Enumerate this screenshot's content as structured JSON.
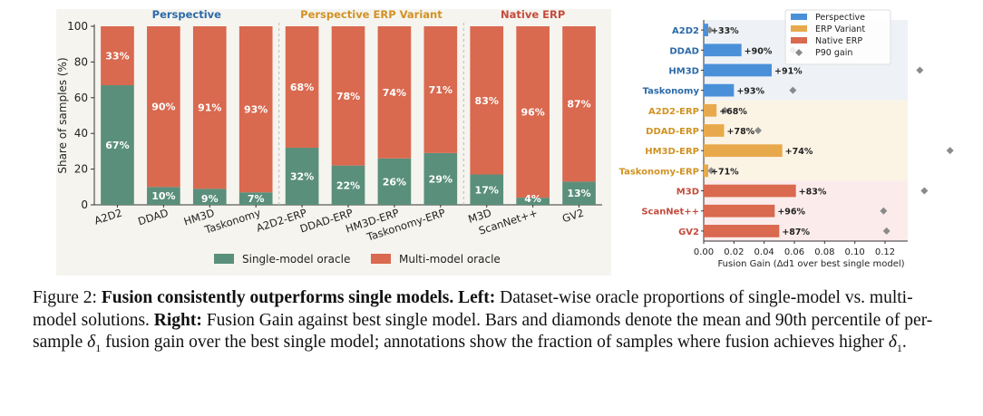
{
  "colors": {
    "single": "#5a8f7b",
    "multi": "#d9694f",
    "perspective": "#4a90d9",
    "erp": "#e8a94c",
    "native": "#d9694f",
    "p90": "#8a8a8a",
    "perspective_label": "#2c6aa8",
    "erp_label": "#d19224",
    "native_label": "#c44b3c"
  },
  "chart_data": [
    {
      "type": "bar",
      "stacked": true,
      "group_titles": [
        "Perspective",
        "Perspective ERP Variant",
        "Native ERP"
      ],
      "categories": [
        "A2D2",
        "DDAD",
        "HM3D",
        "Taskonomy",
        "A2D2-ERP",
        "DDAD-ERP",
        "HM3D-ERP",
        "Taskonomy-ERP",
        "M3D",
        "ScanNet++",
        "GV2"
      ],
      "groups": [
        0,
        0,
        0,
        0,
        1,
        1,
        1,
        1,
        2,
        2,
        2
      ],
      "series": [
        {
          "name": "Single-model oracle",
          "values": [
            67,
            10,
            9,
            7,
            32,
            22,
            26,
            29,
            17,
            4,
            13
          ]
        },
        {
          "name": "Multi-model oracle",
          "values": [
            33,
            90,
            91,
            93,
            68,
            78,
            74,
            71,
            83,
            96,
            87
          ]
        }
      ],
      "ylabel": "Share of samples (%)",
      "ylim": [
        0,
        100
      ],
      "yticks": [
        "0",
        "20",
        "40",
        "60",
        "80",
        "100"
      ],
      "legend": "bottom"
    },
    {
      "type": "bar",
      "orientation": "horizontal",
      "categories": [
        "A2D2",
        "DDAD",
        "HM3D",
        "Taskonomy",
        "A2D2-ERP",
        "DDAD-ERP",
        "HM3D-ERP",
        "Taskonomy-ERP",
        "M3D",
        "ScanNet++",
        "GV2"
      ],
      "groups": [
        0,
        0,
        0,
        0,
        1,
        1,
        1,
        1,
        2,
        2,
        2
      ],
      "mean_gain": [
        0.003,
        0.025,
        0.045,
        0.02,
        0.0085,
        0.0135,
        0.052,
        0.003,
        0.061,
        0.047,
        0.05
      ],
      "p90_gain": [
        0.004,
        0.059,
        0.143,
        0.059,
        0.014,
        0.036,
        0.163,
        0.005,
        0.146,
        0.119,
        0.121
      ],
      "annotations": [
        "+33%",
        "+90%",
        "+91%",
        "+93%",
        "+68%",
        "+78%",
        "+74%",
        "+71%",
        "+83%",
        "+96%",
        "+87%"
      ],
      "xlabel": "Fusion Gain (Δd1 over best single model)",
      "xlim": [
        0,
        0.135
      ],
      "xticks": [
        "0.00",
        "0.02",
        "0.04",
        "0.06",
        "0.08",
        "0.10",
        "0.12"
      ],
      "legend_entries": [
        "Perspective",
        "ERP Variant",
        "Native ERP",
        "P90 gain"
      ],
      "legend": "top-right"
    }
  ],
  "caption": {
    "label": "Figure 2:",
    "bold": "Fusion consistently outperforms single models.",
    "left_label": "Left:",
    "left_text": "Dataset-wise oracle proportions of single-model vs. multi-model solutions.",
    "right_label": "Right:",
    "right_text_1": "Fusion Gain against best single model. Bars and diamonds denote the mean and 90th percentile of per-sample",
    "delta": "δ",
    "delta_sub": "1",
    "right_text_2": "fusion gain over the best single model; annotations show the fraction of samples where fusion achieves higher",
    "end": "."
  }
}
